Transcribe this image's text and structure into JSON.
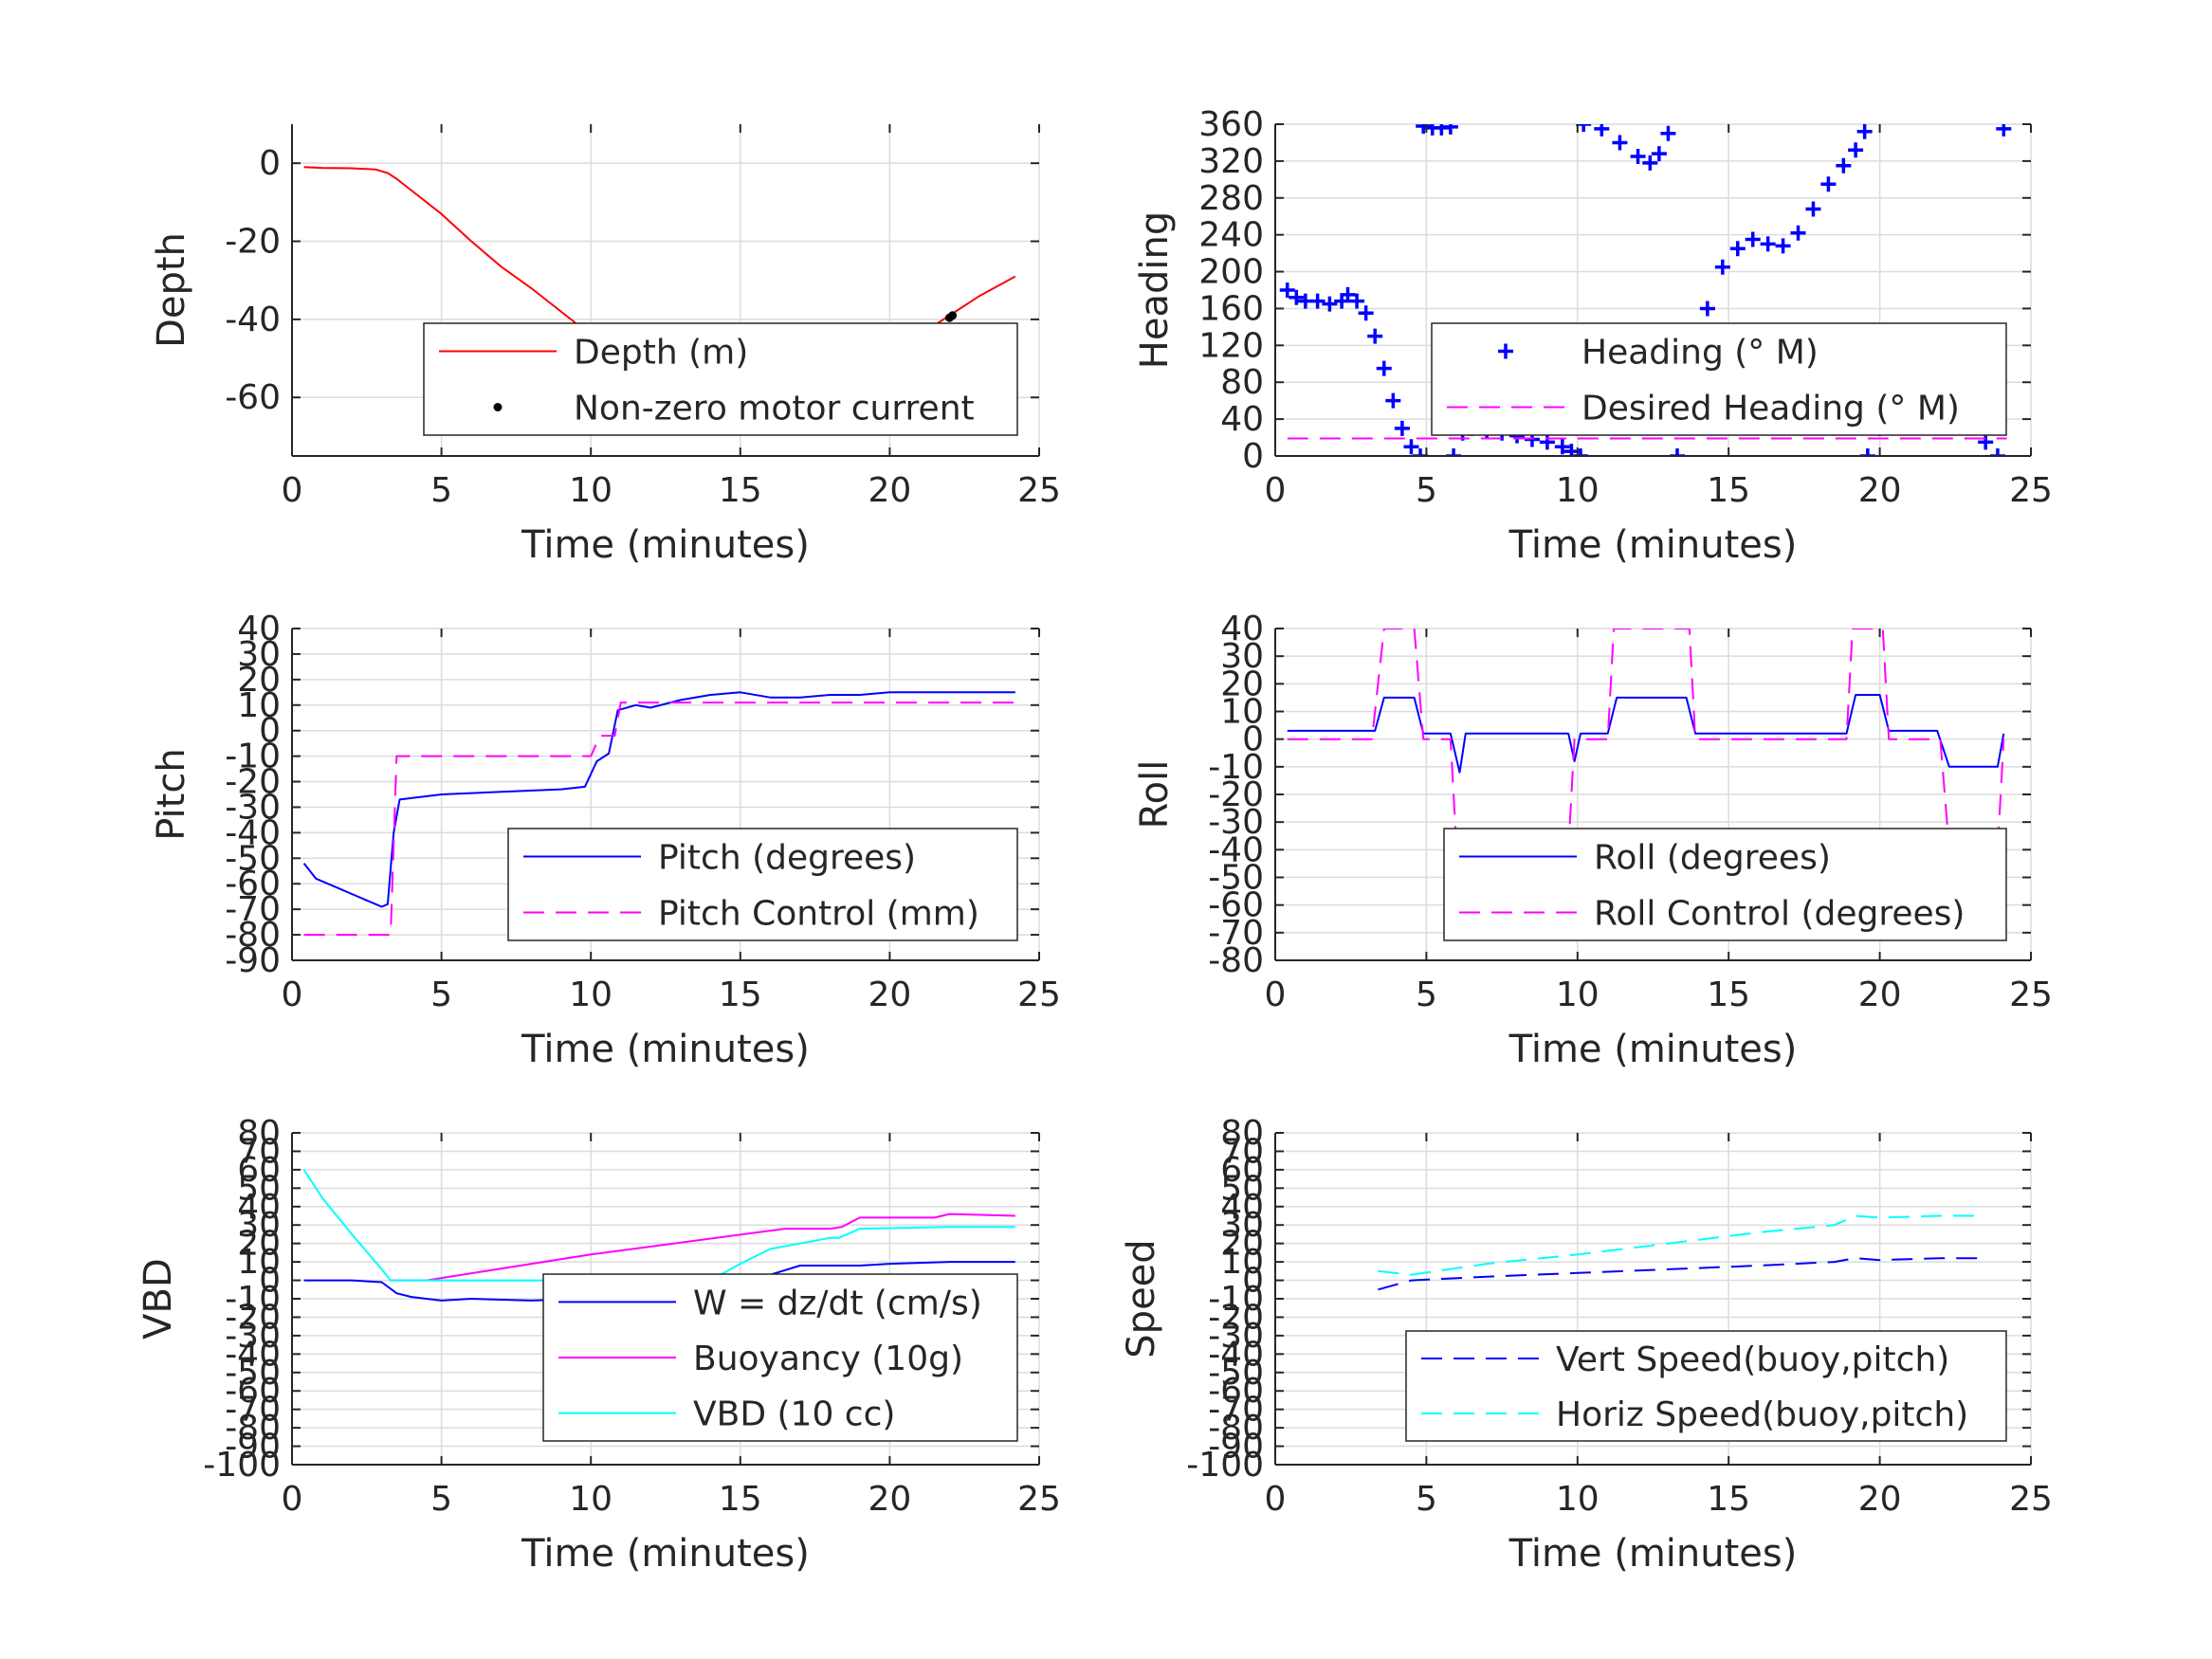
{
  "chart_data": [
    {
      "type": "line",
      "xlabel": "Time (minutes)",
      "ylabel": "Depth",
      "xlim": [
        0,
        25
      ],
      "ylim": [
        -75,
        10
      ],
      "xticks": [
        0,
        5,
        10,
        15,
        20,
        25
      ],
      "yticks": [
        0,
        -20,
        -40,
        -60
      ],
      "grid": true,
      "legend": {
        "position": "bottom-right"
      },
      "series": [
        {
          "name": "Depth (m)",
          "color": "#ff0000",
          "style": "solid",
          "x": [
            0.4,
            1,
            2,
            2.8,
            3.2,
            3.5,
            4,
            5,
            6,
            7,
            8,
            9,
            10,
            11,
            12,
            13,
            14,
            15,
            15.8,
            16.5,
            17,
            18,
            19,
            20,
            21,
            22,
            23,
            24.2
          ],
          "y": [
            -1,
            -1.2,
            -1.3,
            -1.6,
            -2.5,
            -4,
            -7,
            -13,
            -20,
            -26.5,
            -32,
            -38,
            -44,
            -50,
            -56,
            -59,
            -62,
            -63,
            -63.5,
            -63,
            -62,
            -58,
            -54,
            -49,
            -44,
            -39,
            -34,
            -29
          ]
        },
        {
          "name": "Non-zero motor current",
          "color": "#000000",
          "style": "markers",
          "x": [
            11,
            13.5,
            14,
            14.5,
            15,
            15.5,
            16,
            16.5,
            18,
            18.3,
            18.6,
            18.9,
            19,
            20.3,
            22,
            22.1
          ],
          "y": [
            -53.5,
            -61.5,
            -62.3,
            -62.9,
            -63.3,
            -63.5,
            -63.3,
            -62.8,
            -56.8,
            -55.8,
            -55,
            -54.2,
            -53.5,
            -47.8,
            -39.6,
            -39
          ]
        }
      ]
    },
    {
      "type": "scatter",
      "xlabel": "Time (minutes)",
      "ylabel": "Heading",
      "xlim": [
        0,
        25
      ],
      "ylim": [
        0,
        360
      ],
      "xticks": [
        0,
        5,
        10,
        15,
        20,
        25
      ],
      "yticks": [
        0,
        40,
        80,
        120,
        160,
        200,
        240,
        280,
        320,
        360
      ],
      "grid": true,
      "legend": {
        "position": "bottom-right"
      },
      "series": [
        {
          "name": "Heading (° M)",
          "color": "#0000ff",
          "style": "plus-markers",
          "x": [
            0.4,
            0.7,
            1.0,
            1.4,
            1.8,
            2.2,
            2.4,
            2.7,
            3.0,
            3.3,
            3.6,
            3.9,
            4.2,
            4.5,
            4.8,
            4.9,
            5.2,
            5.5,
            5.8,
            5.9,
            6.2,
            6.5,
            7.0,
            7.5,
            8.0,
            8.5,
            9.0,
            9.5,
            9.8,
            10.1,
            10.2,
            10.8,
            11.4,
            12.0,
            12.4,
            12.7,
            13.0,
            13.3,
            13.8,
            14.3,
            14.8,
            15.3,
            15.8,
            16.3,
            16.8,
            17.3,
            17.8,
            18.3,
            18.8,
            19.2,
            19.5,
            19.6,
            20.0,
            20.5,
            21.0,
            21.5,
            22.0,
            22.3,
            22.6,
            22.9,
            23.2,
            23.5,
            23.9,
            24.1
          ],
          "y": [
            180,
            172,
            168,
            168,
            165,
            168,
            175,
            168,
            155,
            130,
            95,
            60,
            30,
            10,
            0,
            358,
            356,
            356,
            357,
            0,
            25,
            30,
            28,
            25,
            22,
            18,
            15,
            10,
            5,
            0,
            360,
            355,
            340,
            325,
            318,
            328,
            350,
            0,
            90,
            160,
            205,
            225,
            235,
            230,
            228,
            242,
            268,
            295,
            315,
            332,
            352,
            0,
            30,
            55,
            75,
            90,
            105,
            100,
            80,
            60,
            35,
            15,
            0,
            355
          ]
        },
        {
          "name": "Desired Heading (° M)",
          "color": "#ff00ff",
          "style": "dashed",
          "x": [
            0.4,
            24.2
          ],
          "y": [
            19,
            19
          ]
        }
      ]
    },
    {
      "type": "line",
      "xlabel": "Time (minutes)",
      "ylabel": "Pitch",
      "xlim": [
        0,
        25
      ],
      "ylim": [
        -90,
        40
      ],
      "xticks": [
        0,
        5,
        10,
        15,
        20,
        25
      ],
      "yticks": [
        40,
        30,
        20,
        10,
        0,
        -10,
        -20,
        -30,
        -40,
        -50,
        -60,
        -70,
        -80,
        -90
      ],
      "grid": true,
      "legend": {
        "position": "bottom-right"
      },
      "series": [
        {
          "name": "Pitch (degrees)",
          "color": "#0000ff",
          "style": "solid",
          "x": [
            0.4,
            0.8,
            1.2,
            1.6,
            2.0,
            2.4,
            2.8,
            3.0,
            3.2,
            3.4,
            3.6,
            5,
            7,
            9,
            9.8,
            10.2,
            10.6,
            10.9,
            11.5,
            12,
            13,
            14,
            15,
            16,
            17,
            18,
            19,
            20,
            21,
            22,
            23,
            24.2
          ],
          "y": [
            -52,
            -58,
            -60,
            -62,
            -64,
            -66,
            -68,
            -69,
            -68,
            -40,
            -27,
            -25,
            -24,
            -23,
            -22,
            -12,
            -9,
            8,
            10,
            9,
            12,
            14,
            15,
            13,
            13,
            14,
            14,
            15,
            15,
            15,
            15,
            15
          ]
        },
        {
          "name": "Pitch Control (mm)",
          "color": "#ff00ff",
          "style": "dashed",
          "x": [
            0.4,
            3.3,
            3.5,
            10.0,
            10.3,
            10.8,
            11.0,
            24.2
          ],
          "y": [
            -80,
            -80,
            -10,
            -10,
            -2,
            -2,
            11,
            11
          ]
        }
      ]
    },
    {
      "type": "line",
      "xlabel": "Time (minutes)",
      "ylabel": "Roll",
      "xlim": [
        0,
        25
      ],
      "ylim": [
        -80,
        40
      ],
      "xticks": [
        0,
        5,
        10,
        15,
        20,
        25
      ],
      "yticks": [
        40,
        30,
        20,
        10,
        0,
        -10,
        -20,
        -30,
        -40,
        -50,
        -60,
        -70,
        -80
      ],
      "grid": true,
      "legend": {
        "position": "bottom-right"
      },
      "series": [
        {
          "name": "Roll (degrees)",
          "color": "#0000ff",
          "style": "solid",
          "x": [
            0.4,
            3.3,
            3.6,
            4.6,
            4.9,
            5.8,
            6.1,
            6.3,
            9.7,
            9.9,
            10.1,
            11.0,
            11.3,
            13.6,
            13.9,
            18.9,
            19.2,
            20.0,
            20.3,
            21.9,
            22.3,
            23.9,
            24.1
          ],
          "y": [
            3,
            3,
            15,
            15,
            2,
            2,
            -12,
            2,
            2,
            -8,
            2,
            2,
            15,
            15,
            2,
            2,
            16,
            16,
            3,
            3,
            -10,
            -10,
            2
          ]
        },
        {
          "name": "Roll Control (degrees)",
          "color": "#ff00ff",
          "style": "dashed",
          "x": [
            0.4,
            3.2,
            3.6,
            4.6,
            4.9,
            5.8,
            6.0,
            9.7,
            9.9,
            10.0,
            11.0,
            11.2,
            13.7,
            13.9,
            18.9,
            19.1,
            20.1,
            20.3,
            22.0,
            22.3,
            23.9,
            24.1
          ],
          "y": [
            0,
            0,
            40,
            40,
            0,
            0,
            -40,
            -40,
            0,
            0,
            0,
            40,
            40,
            0,
            0,
            40,
            40,
            0,
            0,
            -40,
            -40,
            0
          ]
        }
      ]
    },
    {
      "type": "line",
      "xlabel": "Time (minutes)",
      "ylabel": "VBD",
      "xlim": [
        0,
        25
      ],
      "ylim": [
        -100,
        80
      ],
      "xticks": [
        0,
        5,
        10,
        15,
        20,
        25
      ],
      "yticks": [
        80,
        70,
        60,
        50,
        40,
        30,
        20,
        10,
        0,
        -10,
        -20,
        -30,
        -40,
        -50,
        -60,
        -70,
        -80,
        -90,
        -100
      ],
      "grid": true,
      "legend": {
        "position": "bottom-right"
      },
      "series": [
        {
          "name": "W = dz/dt (cm/s)",
          "color": "#0000ff",
          "style": "solid",
          "x": [
            0.4,
            2,
            3,
            3.5,
            4,
            5,
            6,
            8,
            10,
            10.5,
            11,
            11.5,
            12,
            14,
            15,
            16,
            17,
            18,
            19,
            20,
            22,
            24.2
          ],
          "y": [
            0,
            0,
            -1,
            -7,
            -9,
            -11,
            -10,
            -11,
            -10,
            -5,
            1,
            -4,
            -5,
            -5,
            -2,
            3,
            8,
            8,
            8,
            9,
            10,
            10
          ]
        },
        {
          "name": "Buoyancy (10g)",
          "color": "#ff00ff",
          "style": "solid",
          "x": [
            3.3,
            4.5,
            10,
            16.5,
            18,
            18.4,
            19,
            21.5,
            22,
            24.2
          ],
          "y": [
            0,
            0,
            14,
            28,
            28,
            29,
            34,
            34,
            36,
            35
          ]
        },
        {
          "name": "VBD (10 cc)",
          "color": "#00ffff",
          "style": "solid",
          "x": [
            0.4,
            1,
            2,
            3,
            3.3,
            14,
            15,
            16,
            18,
            18.3,
            19,
            22,
            24.2
          ],
          "y": [
            60,
            45,
            25,
            6,
            0,
            0,
            9,
            17,
            23,
            23,
            28,
            29,
            29
          ]
        }
      ]
    },
    {
      "type": "line",
      "xlabel": "Time (minutes)",
      "ylabel": "Speed",
      "xlim": [
        0,
        25
      ],
      "ylim": [
        -100,
        80
      ],
      "xticks": [
        0,
        5,
        10,
        15,
        20,
        25
      ],
      "yticks": [
        80,
        70,
        60,
        50,
        40,
        30,
        20,
        10,
        0,
        -10,
        -20,
        -30,
        -40,
        -50,
        -60,
        -70,
        -80,
        -90,
        -100
      ],
      "grid": true,
      "legend": {
        "position": "bottom-right"
      },
      "series": [
        {
          "name": "Vert Speed(buoy,pitch)",
          "color": "#0000ff",
          "style": "dashed",
          "x": [
            3.4,
            4.5,
            7,
            10,
            13,
            16,
            18.5,
            19.2,
            20,
            22,
            23.5
          ],
          "y": [
            -5,
            0,
            2,
            4,
            6,
            8,
            10,
            12,
            11,
            12,
            12
          ]
        },
        {
          "name": "Horiz Speed(buoy,pitch)",
          "color": "#00ffff",
          "style": "dashed",
          "x": [
            3.4,
            4.5,
            7,
            10,
            13,
            16,
            18.5,
            19.2,
            20,
            22,
            23.5
          ],
          "y": [
            5,
            3,
            9,
            14,
            20,
            26,
            30,
            35,
            34,
            35,
            35
          ]
        }
      ]
    }
  ]
}
